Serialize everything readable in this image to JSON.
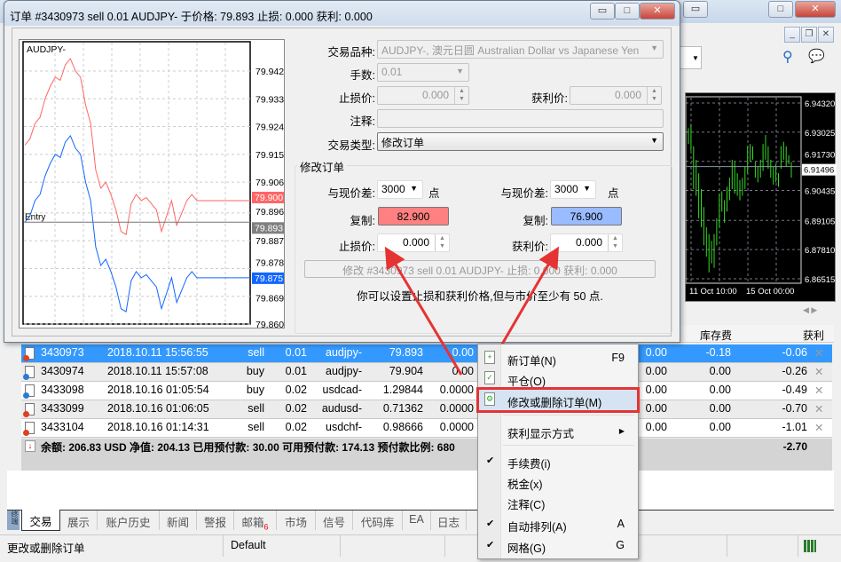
{
  "terminal": {
    "window_controls": {
      "minimize": "▭",
      "maximize": "□",
      "close": "✕"
    },
    "child_controls": {
      "minimize": "_",
      "restore": "❐",
      "close": "✕"
    },
    "bg_chart": {
      "price_labels": [
        "6.94320",
        "6.93025",
        "6.91730",
        "6.90435",
        "6.89105",
        "6.87810",
        "6.86515"
      ],
      "current_price": "6.91496",
      "time_labels": [
        "11 Oct 10:00",
        "15 Oct 00:00"
      ],
      "bars": [
        [
          6.932,
          6.925
        ],
        [
          6.934,
          6.922
        ],
        [
          6.924,
          6.905
        ],
        [
          6.918,
          6.902
        ],
        [
          6.912,
          6.892
        ],
        [
          6.905,
          6.888
        ],
        [
          6.897,
          6.88
        ],
        [
          6.888,
          6.875
        ],
        [
          6.885,
          6.868
        ],
        [
          6.882,
          6.872
        ],
        [
          6.885,
          6.87
        ],
        [
          6.892,
          6.88
        ],
        [
          6.903,
          6.888
        ],
        [
          6.904,
          6.895
        ],
        [
          6.9,
          6.89
        ],
        [
          6.906,
          6.895
        ],
        [
          6.91,
          6.9
        ],
        [
          6.918,
          6.905
        ],
        [
          6.917,
          6.903
        ],
        [
          6.912,
          6.902
        ],
        [
          6.909,
          6.9
        ],
        [
          6.91,
          6.902
        ],
        [
          6.915,
          6.905
        ],
        [
          6.924,
          6.912
        ],
        [
          6.925,
          6.917
        ],
        [
          6.924,
          6.918
        ],
        [
          6.917,
          6.91
        ],
        [
          6.915,
          6.908
        ],
        [
          6.918,
          6.91
        ],
        [
          6.925,
          6.913
        ],
        [
          6.929,
          6.918
        ],
        [
          6.924,
          6.914
        ],
        [
          6.918,
          6.91
        ],
        [
          6.915,
          6.907
        ],
        [
          6.916,
          6.908
        ],
        [
          6.912,
          6.906
        ],
        [
          6.924,
          6.914
        ],
        [
          6.926,
          6.918
        ],
        [
          6.924,
          6.915
        ],
        [
          6.92,
          6.916
        ],
        [
          6.917,
          6.91
        ]
      ]
    },
    "columns": {
      "swap": "库存费",
      "profit": "获利"
    },
    "orders": [
      {
        "ticket": "3430973",
        "time": "2018.10.11 15:56:55",
        "type": "sell",
        "volume": "0.01",
        "symbol": "audjpy-",
        "price": "79.893",
        "sl": "0.00",
        "commission": "0.00",
        "swap": "-0.18",
        "profit": "-0.06",
        "side": "sell"
      },
      {
        "ticket": "3430974",
        "time": "2018.10.11 15:57:08",
        "type": "buy",
        "volume": "0.01",
        "symbol": "audjpy-",
        "price": "79.904",
        "sl": "0.00",
        "commission": "0.00",
        "swap": "0.00",
        "profit": "-0.26",
        "side": "buy"
      },
      {
        "ticket": "3433098",
        "time": "2018.10.16 01:05:54",
        "type": "buy",
        "volume": "0.02",
        "symbol": "usdcad-",
        "price": "1.29844",
        "sl": "0.0000",
        "commission": "0.00",
        "swap": "0.00",
        "profit": "-0.49",
        "side": "buy"
      },
      {
        "ticket": "3433099",
        "time": "2018.10.16 01:06:05",
        "type": "sell",
        "volume": "0.02",
        "symbol": "audusd-",
        "price": "0.71362",
        "sl": "0.0000",
        "commission": "0.00",
        "swap": "0.00",
        "profit": "-0.70",
        "side": "sell"
      },
      {
        "ticket": "3433104",
        "time": "2018.10.16 01:14:31",
        "type": "sell",
        "volume": "0.02",
        "symbol": "usdchf-",
        "price": "0.98666",
        "sl": "0.0000",
        "commission": "0.00",
        "swap": "0.00",
        "profit": "-1.01",
        "side": "sell"
      }
    ],
    "summary": {
      "text": "余额: 206.83 USD  净值: 204.13  已用预付款: 30.00  可用预付款: 174.13  预付款比例: 680",
      "total": "-2.70"
    },
    "side_label": "终端",
    "tabs": [
      {
        "label": "交易",
        "active": true
      },
      {
        "label": "展示"
      },
      {
        "label": "账户历史"
      },
      {
        "label": "新闻"
      },
      {
        "label": "警报"
      },
      {
        "label": "邮箱",
        "badge": "6"
      },
      {
        "label": "市场"
      },
      {
        "label": "信号"
      },
      {
        "label": "代码库"
      },
      {
        "label": "EA"
      },
      {
        "label": "日志"
      }
    ],
    "status": {
      "hint": "更改或删除订单",
      "profile": "Default"
    }
  },
  "dialog": {
    "title": "订单 #3430973 sell 0.01 AUDJPY- 于价格: 79.893 止损: 0.000 获利: 0.000",
    "chart": {
      "symbol": "AUDJPY-",
      "price_labels": [
        "79.942",
        "79.933",
        "79.924",
        "79.915",
        "79.906",
        "79.896",
        "79.887",
        "79.878",
        "79.869",
        "79.860"
      ],
      "ask_tag": "79.900",
      "entry_tag": "79.893",
      "bid_tag": "79.875",
      "entry_label": "Entry",
      "ask_color": "#ff6666",
      "bid_color": "#1166ff",
      "ask_series": [
        79.918,
        79.92,
        79.925,
        79.927,
        79.933,
        79.937,
        79.94,
        79.939,
        79.944,
        79.946,
        79.942,
        79.94,
        79.931,
        79.925,
        79.91,
        79.904,
        79.906,
        79.902,
        79.897,
        79.89,
        79.889,
        79.899,
        79.902,
        79.9,
        79.901,
        79.899,
        79.897,
        79.89,
        79.895,
        79.9,
        79.892,
        79.896,
        79.9,
        79.902,
        79.9
      ],
      "bid_series": [
        79.893,
        79.895,
        79.9,
        79.902,
        79.908,
        79.912,
        79.915,
        79.914,
        79.919,
        79.921,
        79.917,
        79.915,
        79.906,
        79.9,
        79.885,
        79.879,
        79.881,
        79.877,
        79.872,
        79.865,
        79.864,
        79.874,
        79.877,
        79.875,
        79.876,
        79.874,
        79.872,
        79.865,
        79.87,
        79.875,
        79.867,
        79.871,
        79.875,
        79.877,
        79.875
      ]
    },
    "form": {
      "symbol_label": "交易品种:",
      "symbol_value": "AUDJPY-, 澳元日圆 Australian Dollar vs Japanese Yen",
      "volume_label": "手数:",
      "volume_value": "0.01",
      "sl_label": "止损价:",
      "sl_value": "0.000",
      "tp_label": "获利价:",
      "tp_value": "0.000",
      "comment_label": "注释:",
      "comment_value": "",
      "type_label": "交易类型:",
      "type_value": "修改订单"
    },
    "modify": {
      "group_title": "修改订单",
      "diff_label": "与现价差:",
      "sl_diff": "3000",
      "tp_diff": "3000",
      "points": "点",
      "copy_label": "复制:",
      "sl_copy": "82.900",
      "tp_copy": "76.900",
      "sl_label": "止损价:",
      "sl_value": "0.000",
      "tp_label": "获利价:",
      "tp_value": "0.000",
      "modify_button": "修改 #3430973 sell 0.01 AUDJPY- 止损: 0.000 获利: 0.000",
      "hint": "你可以设置止损和获利价格,但与市价至少有 50 点.",
      "sl_copy_color": "#ff8080",
      "tp_copy_color": "#99bbff"
    }
  },
  "context_menu": {
    "items": [
      {
        "label": "新订单(N)",
        "shortcut": "F9",
        "icon": "new-order-icon"
      },
      {
        "label": "平仓(O)",
        "icon": "close-order-icon"
      },
      {
        "label": "修改或删除订单(M)",
        "icon": "modify-order-icon",
        "highlighted": true
      },
      {
        "label": "获利显示方式",
        "submenu": true
      },
      {
        "label": "手续费(i)",
        "checked": true
      },
      {
        "label": "税金(x)"
      },
      {
        "label": "注释(C)"
      },
      {
        "label": "自动排列(A)",
        "shortcut": "A",
        "checked": true
      },
      {
        "label": "网格(G)",
        "shortcut": "G",
        "checked": true
      }
    ],
    "highlight_color": "#e53333"
  }
}
